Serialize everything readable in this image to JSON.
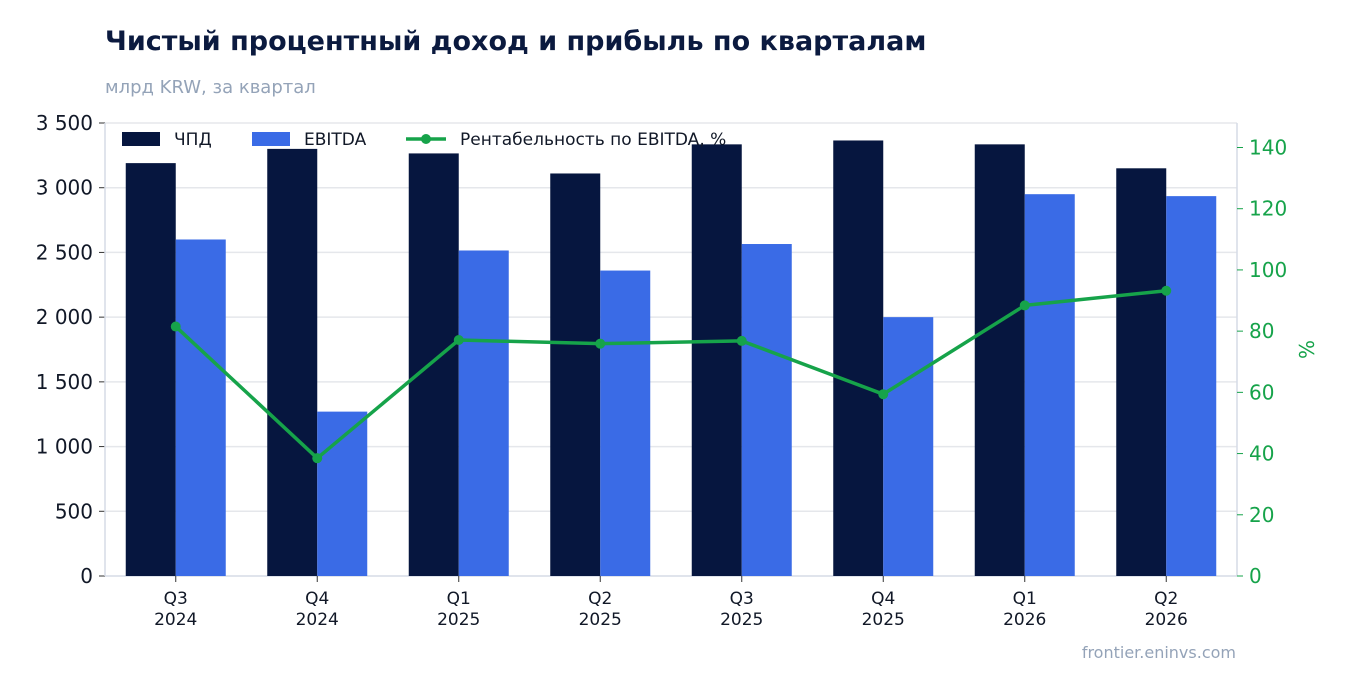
{
  "title": "Чистый процентный доход и прибыль по кварталам",
  "subtitle": "млрд KRW, за квартал",
  "source": "frontier.eninvs.com",
  "colors": {
    "npd": "#06163f",
    "ebitda": "#3a6be6",
    "margin": "#16a34a",
    "grid": "#e5e7eb",
    "axis": "#d6dbe6"
  },
  "chart_data": {
    "type": "bar",
    "categories": [
      [
        "Q3",
        "2024"
      ],
      [
        "Q4",
        "2024"
      ],
      [
        "Q1",
        "2025"
      ],
      [
        "Q2",
        "2025"
      ],
      [
        "Q3",
        "2025"
      ],
      [
        "Q4",
        "2025"
      ],
      [
        "Q1",
        "2026"
      ],
      [
        "Q2",
        "2026"
      ]
    ],
    "series": [
      {
        "name": "ЧПД",
        "type": "bar",
        "axis": "left",
        "color": "#06163f",
        "values": [
          3190,
          3300,
          3265,
          3110,
          3335,
          3365,
          3335,
          3150
        ]
      },
      {
        "name": "EBITDA",
        "type": "bar",
        "axis": "left",
        "color": "#3a6be6",
        "values": [
          2600,
          1270,
          2515,
          2360,
          2565,
          2000,
          2950,
          2935
        ]
      },
      {
        "name": "Рентабельность по EBITDA, %",
        "type": "line",
        "axis": "right",
        "color": "#16a34a",
        "values": [
          81.5,
          38.5,
          77.1,
          75.9,
          76.8,
          59.4,
          88.4,
          93.2
        ]
      }
    ],
    "yleft": {
      "range": [
        0,
        3500
      ],
      "ticks": [
        0,
        500,
        1000,
        1500,
        2000,
        2500,
        3000,
        3500
      ],
      "tick_labels": [
        "0",
        "500",
        "1 000",
        "1 500",
        "2 000",
        "2 500",
        "3 000",
        "3 500"
      ]
    },
    "yright": {
      "label": "%",
      "range": [
        0,
        148
      ],
      "ticks": [
        0,
        20,
        40,
        60,
        80,
        100,
        120,
        140
      ],
      "tick_labels": [
        "0",
        "20",
        "40",
        "60",
        "80",
        "100",
        "120",
        "140"
      ]
    },
    "grid": true,
    "legend_position": "top-left"
  }
}
